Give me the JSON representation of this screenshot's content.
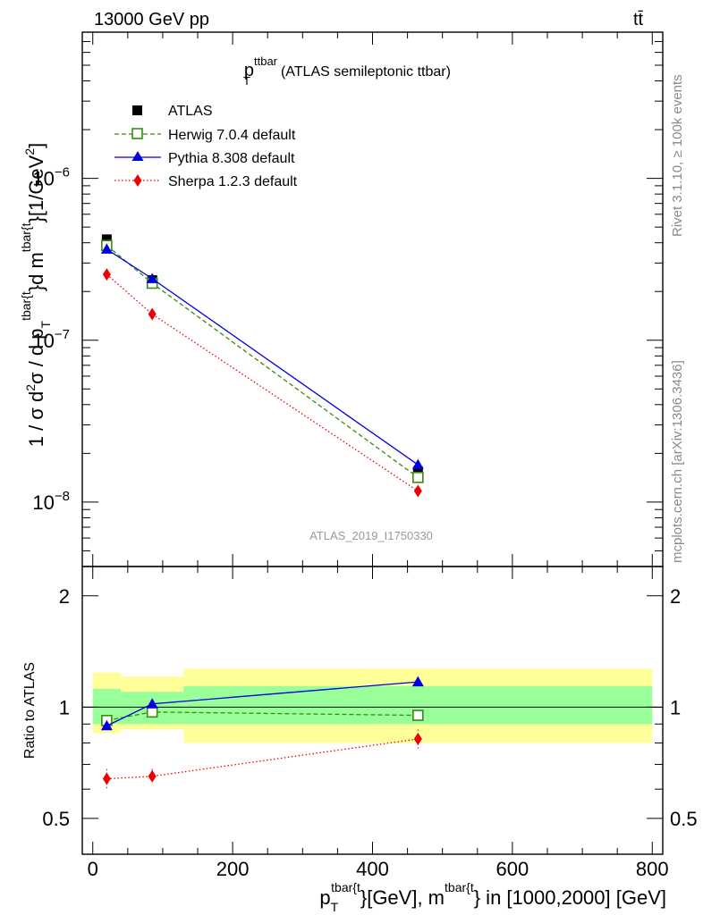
{
  "header": {
    "left": "13000 GeV pp",
    "right": "tt̄"
  },
  "plot_title": {
    "main": "p",
    "sub": "T",
    "sup": "ttbar",
    "rest": "(ATLAS semileptonic ttbar)"
  },
  "side_labels": {
    "rivet": "Rivet 3.1.10, ≥ 100k events",
    "mcplots": "mcplots.cern.ch [arXiv:1306.3436]"
  },
  "watermark": "ATLAS_2019_I1750330",
  "axes": {
    "y_main": {
      "label_parts": {
        "a": "1 / σ d",
        "b": "2",
        "c": "σ / d p",
        "d": "T",
        "e": "tbar{t",
        "f": "}d m",
        "g": "tbar{t",
        "h": "}[1/GeV",
        "i": "2",
        "j": "]"
      },
      "ticks": [
        {
          "value": 1e-06,
          "base": "10",
          "exp": "−6"
        },
        {
          "value": 1e-07,
          "base": "10",
          "exp": "−7"
        },
        {
          "value": 1e-08,
          "base": "10",
          "exp": "−8"
        }
      ]
    },
    "y_ratio": {
      "label": "Ratio to ATLAS",
      "ticks": [
        "2",
        "1",
        "0.5"
      ]
    },
    "x": {
      "label_parts": {
        "a": "p",
        "b": "T",
        "c": "tbar{t",
        "d": "}[GeV], m",
        "e": "tbar{t",
        "f": "} in [1000,2000] [GeV]"
      },
      "ticks": [
        "0",
        "200",
        "400",
        "600",
        "800"
      ]
    }
  },
  "chart_data": [
    {
      "type": "line",
      "scale": "log-y",
      "xlim": [
        -15,
        815
      ],
      "ylim": [
        4e-09,
        8e-06
      ],
      "series": [
        {
          "name": "ATLAS",
          "color": "#000000",
          "marker": "square-filled",
          "x": [
            20,
            85,
            465
          ],
          "y": [
            4.2e-07,
            2.35e-07,
            1.55e-08
          ],
          "line": "none"
        },
        {
          "name": "Herwig 7.0.4 default",
          "color": "#3a8a10",
          "marker": "square-open",
          "x": [
            20,
            85,
            465
          ],
          "y": [
            3.85e-07,
            2.25e-07,
            1.42e-08
          ],
          "line": "dashed"
        },
        {
          "name": "Pythia 8.308 default",
          "color": "#0000dd",
          "marker": "triangle",
          "x": [
            20,
            85,
            465
          ],
          "y": [
            3.65e-07,
            2.4e-07,
            1.7e-08
          ],
          "line": "solid"
        },
        {
          "name": "Sherpa 1.2.3 default",
          "color": "#ee0000",
          "marker": "diamond",
          "x": [
            20,
            85,
            465
          ],
          "y": [
            2.55e-07,
            1.45e-07,
            1.17e-08
          ],
          "line": "dotted"
        }
      ]
    },
    {
      "type": "line",
      "scale": "log-y",
      "ylabel": "Ratio to ATLAS",
      "ylim": [
        0.4,
        2.4
      ],
      "bands": [
        {
          "x": [
            0,
            40
          ],
          "inner": [
            0.9,
            1.12
          ],
          "outer": [
            0.85,
            1.24
          ]
        },
        {
          "x": [
            40,
            130
          ],
          "inner": [
            0.9,
            1.1
          ],
          "outer": [
            0.87,
            1.21
          ]
        },
        {
          "x": [
            130,
            800
          ],
          "inner": [
            0.9,
            1.14
          ],
          "outer": [
            0.8,
            1.27
          ]
        }
      ],
      "band_colors": {
        "inner": "#99ff99",
        "outer": "#ffff99"
      },
      "series": [
        {
          "name": "Herwig 7.0.4 default",
          "x": [
            20,
            85,
            465
          ],
          "y": [
            0.92,
            0.97,
            0.95
          ],
          "err": [
            0.02,
            0.01,
            0.03
          ]
        },
        {
          "name": "Pythia 8.308 default",
          "x": [
            20,
            85,
            465
          ],
          "y": [
            0.89,
            1.02,
            1.17
          ],
          "err": [
            0.0,
            0.0,
            0.0
          ]
        },
        {
          "name": "Sherpa 1.2.3 default",
          "x": [
            20,
            85,
            465
          ],
          "y": [
            0.64,
            0.65,
            0.82
          ],
          "err": [
            0.04,
            0.03,
            0.05
          ]
        }
      ]
    }
  ]
}
